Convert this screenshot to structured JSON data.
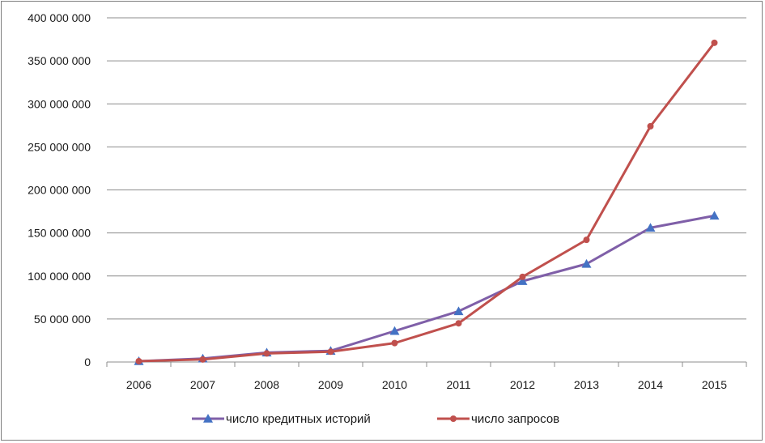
{
  "chart_data": {
    "type": "line",
    "title": "",
    "xlabel": "",
    "ylabel": "",
    "categories": [
      "2006",
      "2007",
      "2008",
      "2009",
      "2010",
      "2011",
      "2012",
      "2013",
      "2014",
      "2015"
    ],
    "ylim": [
      0,
      400000000
    ],
    "ytick_values": [
      0,
      50000000,
      100000000,
      150000000,
      200000000,
      250000000,
      300000000,
      350000000,
      400000000
    ],
    "ytick_labels": [
      "0",
      "50 000 000",
      "100 000 000",
      "150 000 000",
      "200 000 000",
      "250 000 000",
      "300 000 000",
      "350 000 000",
      "400 000 000"
    ],
    "grid": "horizontal",
    "legend_position": "bottom",
    "series": [
      {
        "name": "число кредитных историй",
        "color": "#7f5fa8",
        "marker": "triangle",
        "marker_color": "#4472c4",
        "values": [
          1000000,
          4000000,
          11000000,
          13000000,
          36000000,
          59000000,
          94000000,
          114000000,
          156000000,
          170000000
        ]
      },
      {
        "name": "число запросов",
        "color": "#c0504d",
        "marker": "circle",
        "marker_color": "#c0504d",
        "values": [
          1000000,
          3000000,
          10000000,
          12000000,
          22000000,
          45000000,
          99000000,
          142000000,
          274000000,
          371000000
        ]
      }
    ]
  }
}
